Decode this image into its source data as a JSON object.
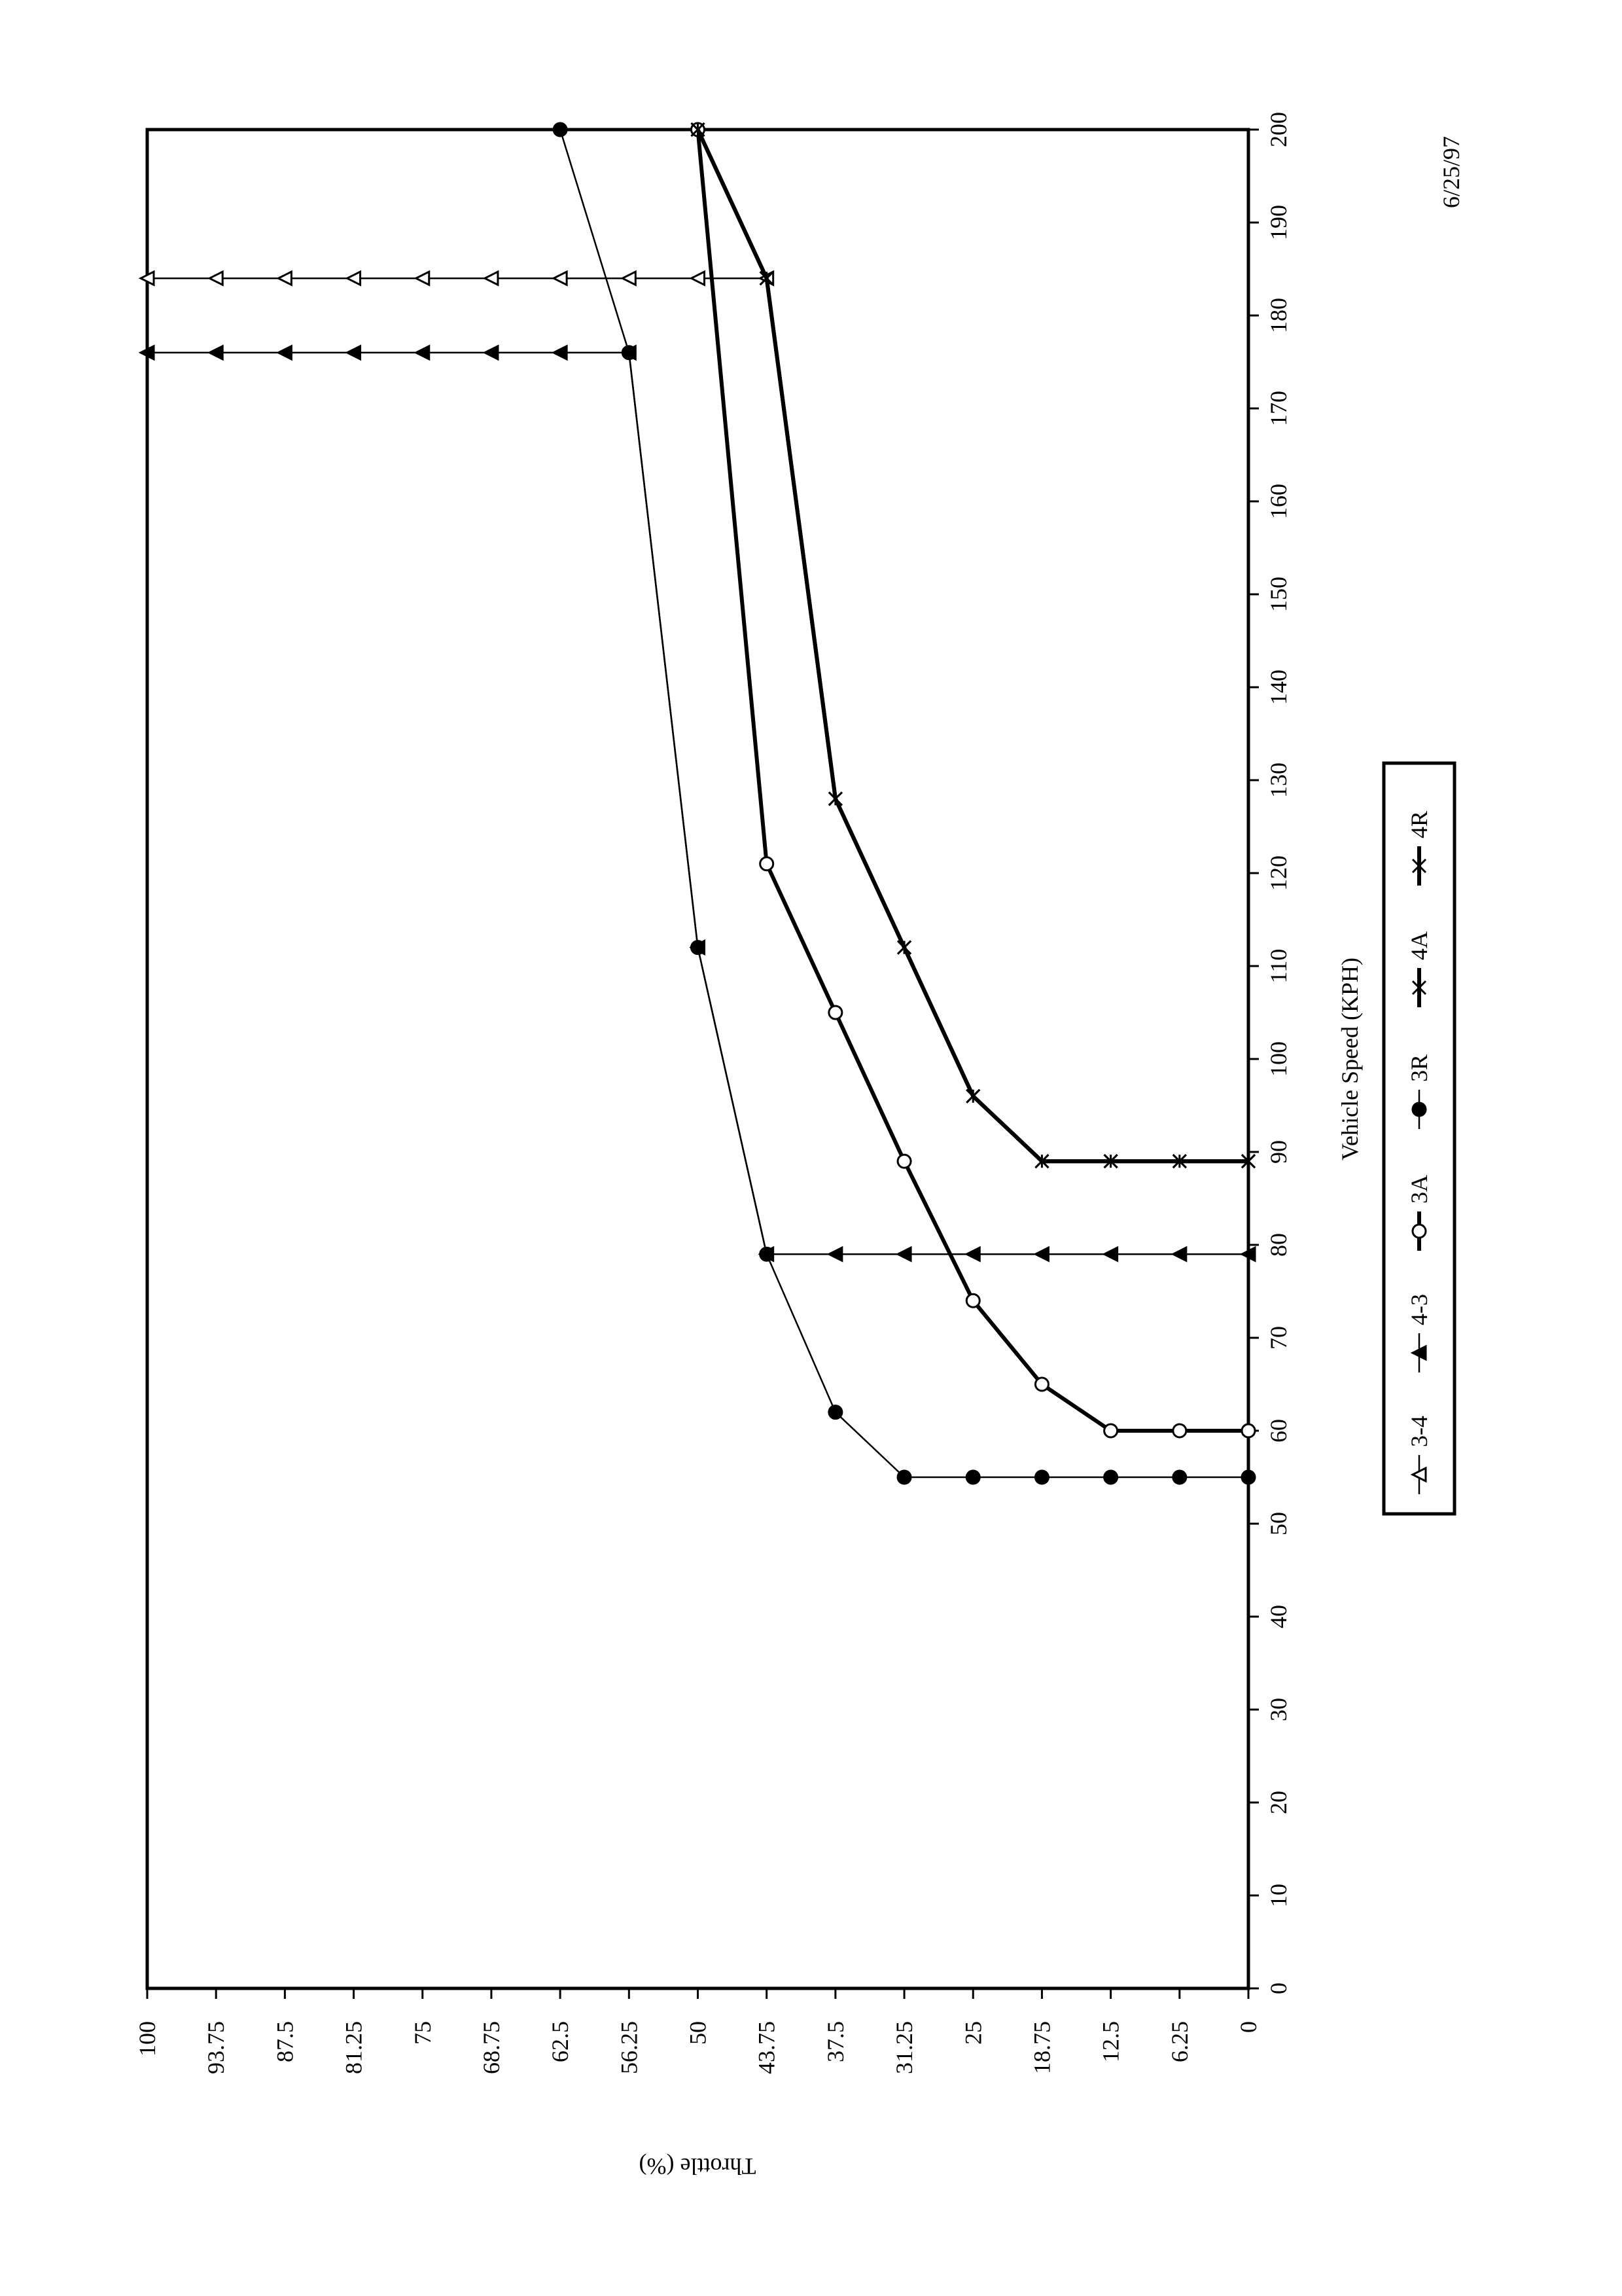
{
  "chart_data": {
    "type": "line",
    "x_label": "Vehicle Speed (KPH)",
    "y_label": "Throttle (%)",
    "date": "6/25/97",
    "xlim": [
      0,
      200
    ],
    "xticks": [
      0,
      10,
      20,
      30,
      40,
      50,
      60,
      70,
      80,
      90,
      100,
      110,
      120,
      130,
      140,
      150,
      160,
      170,
      180,
      190,
      200
    ],
    "ylim": [
      0,
      100
    ],
    "yticks": [
      0,
      6.25,
      12.5,
      18.75,
      25,
      31.25,
      37.5,
      43.75,
      50,
      56.25,
      62.5,
      68.75,
      75,
      81.25,
      87.5,
      93.75,
      100
    ],
    "rotation": "counterclockwise",
    "series": [
      {
        "name": "3-4",
        "color": "#000000",
        "marker": "triangle-open",
        "line_style": "thin",
        "x": [
          184,
          184,
          184,
          184,
          184,
          184,
          184,
          184,
          184,
          184
        ],
        "values": [
          100,
          93.75,
          87.5,
          81.25,
          75,
          68.75,
          62.5,
          56.25,
          50,
          43.75
        ]
      },
      {
        "name": "4-3",
        "color": "#000000",
        "marker": "triangle",
        "line_style": "thin",
        "x": [
          176,
          176,
          176,
          176,
          176,
          176,
          176,
          176,
          112,
          79,
          79,
          79,
          79,
          79,
          79,
          79,
          79
        ],
        "values": [
          100,
          93.75,
          87.5,
          81.25,
          75,
          68.75,
          62.5,
          56.25,
          50,
          43.75,
          37.5,
          31.25,
          25,
          18.75,
          12.5,
          6.25,
          0
        ]
      },
      {
        "name": "3A",
        "color": "#000000",
        "marker": "circle-open",
        "line_style": "bold",
        "x": [
          60,
          60,
          60,
          65,
          74,
          89,
          105,
          121,
          200
        ],
        "values": [
          0,
          6.25,
          12.5,
          18.75,
          25,
          31.25,
          37.5,
          43.75,
          50
        ]
      },
      {
        "name": "3R",
        "color": "#000000",
        "marker": "circle",
        "line_style": "thin",
        "x": [
          55,
          55,
          55,
          55,
          55,
          55,
          62,
          79,
          112,
          176,
          200
        ],
        "values": [
          0,
          6.25,
          12.5,
          18.75,
          25,
          31.25,
          37.5,
          43.75,
          50,
          56.25,
          62.5
        ]
      },
      {
        "name": "4A",
        "color": "#000000",
        "marker": "x-bar",
        "line_style": "bold",
        "x": [
          89,
          89,
          89,
          89,
          96,
          112,
          128,
          184,
          200
        ],
        "values": [
          0,
          6.25,
          12.5,
          18.75,
          25,
          31.25,
          37.5,
          43.75,
          50
        ]
      },
      {
        "name": "4R",
        "color": "#000000",
        "marker": "x",
        "line_style": "bold",
        "x": [
          89,
          89,
          89,
          89,
          96,
          112,
          128,
          184,
          200
        ],
        "values": [
          0,
          6.25,
          12.5,
          18.75,
          25,
          31.25,
          37.5,
          43.75,
          50
        ]
      }
    ]
  }
}
